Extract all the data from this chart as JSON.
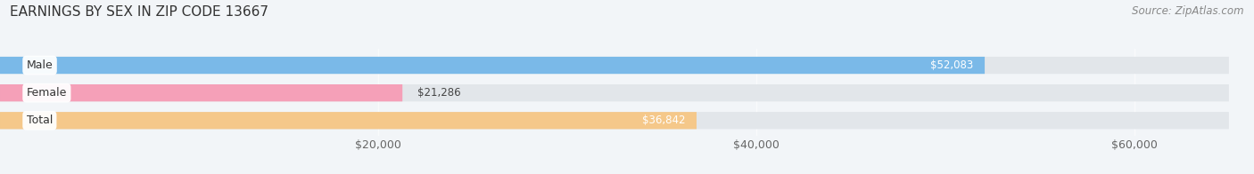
{
  "title": "EARNINGS BY SEX IN ZIP CODE 13667",
  "source": "Source: ZipAtlas.com",
  "categories": [
    "Male",
    "Female",
    "Total"
  ],
  "values": [
    52083,
    21286,
    36842
  ],
  "bar_colors": [
    "#7ab9e8",
    "#f5a0b8",
    "#f5c88a"
  ],
  "bar_labels": [
    "$52,083",
    "$21,286",
    "$36,842"
  ],
  "label_outside": [
    false,
    true,
    false
  ],
  "xlim": [
    0,
    65000
  ],
  "xticks": [
    20000,
    40000,
    60000
  ],
  "xtick_labels": [
    "$20,000",
    "$40,000",
    "$60,000"
  ],
  "background_color": "#f2f5f8",
  "bar_bg_color": "#e2e6ea",
  "title_fontsize": 11,
  "label_fontsize": 9,
  "value_fontsize": 8.5,
  "source_fontsize": 8.5
}
